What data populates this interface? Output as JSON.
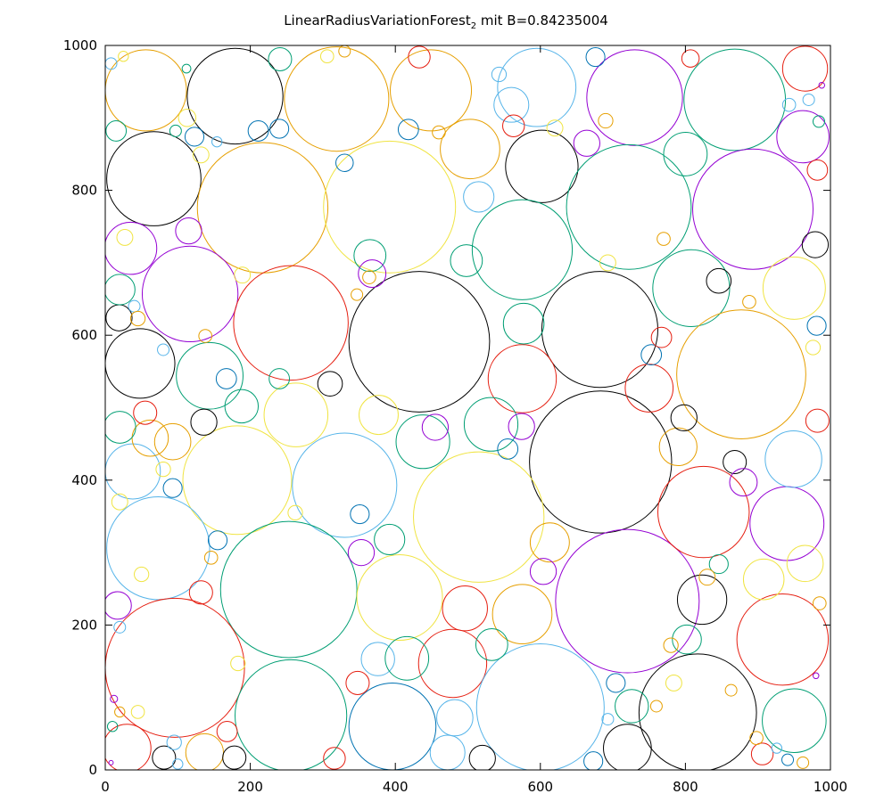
{
  "chart_data": {
    "type": "scatter",
    "title_main": "LinearRadiusVariationForest",
    "title_sub": "2",
    "title_rest": " mit B=0.84235004",
    "xlabel": "",
    "ylabel": "",
    "xlim": [
      0,
      1000
    ],
    "ylim": [
      0,
      1000
    ],
    "xticks": [
      0,
      200,
      400,
      600,
      800,
      1000
    ],
    "yticks": [
      0,
      200,
      400,
      600,
      800,
      1000
    ],
    "grid": false,
    "legend": "none",
    "colors": {
      "purple": "#9400d3",
      "teal": "#009e73",
      "sky": "#56b4e9",
      "orange": "#e69f00",
      "yellow": "#f0e442",
      "blue": "#0072b2",
      "red": "#e51e10",
      "black": "#000000"
    },
    "circles": [
      {
        "x": 56,
        "y": 938,
        "r": 56,
        "c": "orange"
      },
      {
        "x": 179,
        "y": 930,
        "r": 66,
        "c": "black"
      },
      {
        "x": 319,
        "y": 926,
        "r": 72,
        "c": "orange"
      },
      {
        "x": 449,
        "y": 938,
        "r": 56,
        "c": "orange"
      },
      {
        "x": 595,
        "y": 942,
        "r": 54,
        "c": "sky"
      },
      {
        "x": 730,
        "y": 928,
        "r": 66,
        "c": "purple"
      },
      {
        "x": 868,
        "y": 925,
        "r": 70,
        "c": "teal"
      },
      {
        "x": 965,
        "y": 968,
        "r": 31,
        "c": "red"
      },
      {
        "x": 67,
        "y": 816,
        "r": 65,
        "c": "black"
      },
      {
        "x": 217,
        "y": 776,
        "r": 90,
        "c": "orange"
      },
      {
        "x": 392,
        "y": 777,
        "r": 91,
        "c": "yellow"
      },
      {
        "x": 602,
        "y": 833,
        "r": 50,
        "c": "black"
      },
      {
        "x": 722,
        "y": 777,
        "r": 86,
        "c": "teal"
      },
      {
        "x": 893,
        "y": 774,
        "r": 83,
        "c": "purple"
      },
      {
        "x": 962,
        "y": 874,
        "r": 36,
        "c": "purple"
      },
      {
        "x": 503,
        "y": 857,
        "r": 41,
        "c": "orange"
      },
      {
        "x": 575,
        "y": 718,
        "r": 69,
        "c": "teal"
      },
      {
        "x": 808,
        "y": 665,
        "r": 53,
        "c": "teal"
      },
      {
        "x": 950,
        "y": 665,
        "r": 43,
        "c": "yellow"
      },
      {
        "x": 117,
        "y": 657,
        "r": 66,
        "c": "purple"
      },
      {
        "x": 256,
        "y": 617,
        "r": 79,
        "c": "red"
      },
      {
        "x": 433,
        "y": 591,
        "r": 97,
        "c": "black"
      },
      {
        "x": 682,
        "y": 608,
        "r": 80,
        "c": "black"
      },
      {
        "x": 877,
        "y": 546,
        "r": 89,
        "c": "orange"
      },
      {
        "x": 35,
        "y": 720,
        "r": 36,
        "c": "purple"
      },
      {
        "x": 48,
        "y": 561,
        "r": 48,
        "c": "black"
      },
      {
        "x": 144,
        "y": 544,
        "r": 46,
        "c": "teal"
      },
      {
        "x": 575,
        "y": 540,
        "r": 47,
        "c": "red"
      },
      {
        "x": 683,
        "y": 425,
        "r": 98,
        "c": "black"
      },
      {
        "x": 182,
        "y": 400,
        "r": 75,
        "c": "yellow"
      },
      {
        "x": 330,
        "y": 393,
        "r": 72,
        "c": "sky"
      },
      {
        "x": 515,
        "y": 349,
        "r": 90,
        "c": "yellow"
      },
      {
        "x": 73,
        "y": 306,
        "r": 71,
        "c": "sky"
      },
      {
        "x": 38,
        "y": 412,
        "r": 38,
        "c": "sky"
      },
      {
        "x": 253,
        "y": 249,
        "r": 94,
        "c": "teal"
      },
      {
        "x": 406,
        "y": 238,
        "r": 59,
        "c": "yellow"
      },
      {
        "x": 720,
        "y": 233,
        "r": 99,
        "c": "purple"
      },
      {
        "x": 825,
        "y": 356,
        "r": 63,
        "c": "red"
      },
      {
        "x": 940,
        "y": 340,
        "r": 51,
        "c": "purple"
      },
      {
        "x": 949,
        "y": 429,
        "r": 39,
        "c": "sky"
      },
      {
        "x": 96,
        "y": 141,
        "r": 96,
        "c": "red"
      },
      {
        "x": 256,
        "y": 75,
        "r": 77,
        "c": "teal"
      },
      {
        "x": 396,
        "y": 60,
        "r": 60,
        "c": "blue"
      },
      {
        "x": 479,
        "y": 147,
        "r": 47,
        "c": "red"
      },
      {
        "x": 600,
        "y": 86,
        "r": 88,
        "c": "sky"
      },
      {
        "x": 817,
        "y": 79,
        "r": 81,
        "c": "black"
      },
      {
        "x": 934,
        "y": 180,
        "r": 63,
        "c": "red"
      },
      {
        "x": 950,
        "y": 68,
        "r": 44,
        "c": "teal"
      },
      {
        "x": 532,
        "y": 477,
        "r": 37,
        "c": "teal"
      },
      {
        "x": 438,
        "y": 453,
        "r": 37,
        "c": "teal"
      },
      {
        "x": 263,
        "y": 490,
        "r": 44,
        "c": "yellow"
      },
      {
        "x": 365,
        "y": 710,
        "r": 22,
        "c": "teal"
      },
      {
        "x": 577,
        "y": 616,
        "r": 28,
        "c": "teal"
      },
      {
        "x": 575,
        "y": 215,
        "r": 41,
        "c": "orange"
      },
      {
        "x": 496,
        "y": 223,
        "r": 31,
        "c": "red"
      },
      {
        "x": 823,
        "y": 235,
        "r": 34,
        "c": "black"
      },
      {
        "x": 908,
        "y": 263,
        "r": 28,
        "c": "yellow"
      },
      {
        "x": 560,
        "y": 918,
        "r": 24,
        "c": "sky"
      },
      {
        "x": 515,
        "y": 791,
        "r": 21,
        "c": "sky"
      },
      {
        "x": 790,
        "y": 446,
        "r": 26,
        "c": "orange"
      },
      {
        "x": 750,
        "y": 527,
        "r": 33,
        "c": "red"
      },
      {
        "x": 800,
        "y": 850,
        "r": 30,
        "c": "teal"
      },
      {
        "x": 720,
        "y": 30,
        "r": 33,
        "c": "black"
      },
      {
        "x": 30,
        "y": 30,
        "r": 33,
        "c": "red"
      },
      {
        "x": 137,
        "y": 24,
        "r": 26,
        "c": "orange"
      },
      {
        "x": 472,
        "y": 24,
        "r": 24,
        "c": "sky"
      },
      {
        "x": 482,
        "y": 72,
        "r": 25,
        "c": "sky"
      },
      {
        "x": 726,
        "y": 88,
        "r": 23,
        "c": "teal"
      },
      {
        "x": 533,
        "y": 173,
        "r": 22,
        "c": "teal"
      },
      {
        "x": 376,
        "y": 153,
        "r": 23,
        "c": "sky"
      },
      {
        "x": 377,
        "y": 490,
        "r": 27,
        "c": "yellow"
      },
      {
        "x": 188,
        "y": 502,
        "r": 23,
        "c": "teal"
      },
      {
        "x": 136,
        "y": 480,
        "r": 18,
        "c": "black"
      },
      {
        "x": 62,
        "y": 458,
        "r": 25,
        "c": "orange"
      },
      {
        "x": 20,
        "y": 473,
        "r": 22,
        "c": "teal"
      },
      {
        "x": 93,
        "y": 453,
        "r": 25,
        "c": "orange"
      },
      {
        "x": 115,
        "y": 744,
        "r": 18,
        "c": "purple"
      },
      {
        "x": 167,
        "y": 540,
        "r": 14,
        "c": "blue"
      },
      {
        "x": 310,
        "y": 533,
        "r": 17,
        "c": "black"
      },
      {
        "x": 262,
        "y": 355,
        "r": 10,
        "c": "yellow"
      },
      {
        "x": 351,
        "y": 353,
        "r": 13,
        "c": "blue"
      },
      {
        "x": 392,
        "y": 318,
        "r": 21,
        "c": "teal"
      },
      {
        "x": 353,
        "y": 300,
        "r": 18,
        "c": "purple"
      },
      {
        "x": 368,
        "y": 685,
        "r": 19,
        "c": "purple"
      },
      {
        "x": 455,
        "y": 473,
        "r": 18,
        "c": "purple"
      },
      {
        "x": 418,
        "y": 884,
        "r": 14,
        "c": "blue"
      },
      {
        "x": 563,
        "y": 889,
        "r": 15,
        "c": "red"
      },
      {
        "x": 613,
        "y": 314,
        "r": 27,
        "c": "orange"
      },
      {
        "x": 604,
        "y": 274,
        "r": 18,
        "c": "purple"
      },
      {
        "x": 574,
        "y": 474,
        "r": 18,
        "c": "purple"
      },
      {
        "x": 555,
        "y": 443,
        "r": 14,
        "c": "blue"
      },
      {
        "x": 498,
        "y": 703,
        "r": 22,
        "c": "teal"
      },
      {
        "x": 664,
        "y": 865,
        "r": 18,
        "c": "purple"
      },
      {
        "x": 846,
        "y": 675,
        "r": 17,
        "c": "black"
      },
      {
        "x": 979,
        "y": 725,
        "r": 18,
        "c": "black"
      },
      {
        "x": 981,
        "y": 613,
        "r": 13,
        "c": "blue"
      },
      {
        "x": 802,
        "y": 180,
        "r": 20,
        "c": "teal"
      },
      {
        "x": 868,
        "y": 425,
        "r": 16,
        "c": "black"
      },
      {
        "x": 880,
        "y": 397,
        "r": 19,
        "c": "purple"
      },
      {
        "x": 19,
        "y": 624,
        "r": 18,
        "c": "black"
      },
      {
        "x": 20,
        "y": 663,
        "r": 21,
        "c": "teal"
      },
      {
        "x": 17,
        "y": 227,
        "r": 19,
        "c": "purple"
      },
      {
        "x": 132,
        "y": 245,
        "r": 16,
        "c": "red"
      },
      {
        "x": 155,
        "y": 317,
        "r": 13,
        "c": "blue"
      },
      {
        "x": 93,
        "y": 389,
        "r": 13,
        "c": "blue"
      },
      {
        "x": 123,
        "y": 874,
        "r": 13,
        "c": "blue"
      },
      {
        "x": 55,
        "y": 493,
        "r": 16,
        "c": "red"
      },
      {
        "x": 211,
        "y": 882,
        "r": 14,
        "c": "blue"
      },
      {
        "x": 240,
        "y": 540,
        "r": 14,
        "c": "teal"
      },
      {
        "x": 316,
        "y": 16,
        "r": 15,
        "c": "red"
      },
      {
        "x": 348,
        "y": 120,
        "r": 16,
        "c": "red"
      },
      {
        "x": 416,
        "y": 154,
        "r": 30,
        "c": "teal"
      },
      {
        "x": 520,
        "y": 16,
        "r": 18,
        "c": "black"
      },
      {
        "x": 81,
        "y": 17,
        "r": 16,
        "c": "black"
      },
      {
        "x": 178,
        "y": 17,
        "r": 16,
        "c": "black"
      },
      {
        "x": 168,
        "y": 53,
        "r": 14,
        "c": "red"
      },
      {
        "x": 673,
        "y": 12,
        "r": 13,
        "c": "blue"
      },
      {
        "x": 906,
        "y": 22,
        "r": 15,
        "c": "red"
      },
      {
        "x": 965,
        "y": 285,
        "r": 25,
        "c": "yellow"
      },
      {
        "x": 846,
        "y": 284,
        "r": 13,
        "c": "teal"
      },
      {
        "x": 753,
        "y": 573,
        "r": 14,
        "c": "blue"
      },
      {
        "x": 798,
        "y": 486,
        "r": 18,
        "c": "black"
      },
      {
        "x": 767,
        "y": 597,
        "r": 14,
        "c": "red"
      },
      {
        "x": 676,
        "y": 984,
        "r": 13,
        "c": "blue"
      },
      {
        "x": 807,
        "y": 982,
        "r": 12,
        "c": "red"
      },
      {
        "x": 982,
        "y": 482,
        "r": 16,
        "c": "red"
      },
      {
        "x": 982,
        "y": 828,
        "r": 14,
        "c": "red"
      },
      {
        "x": 433,
        "y": 984,
        "r": 15,
        "c": "red"
      },
      {
        "x": 241,
        "y": 981,
        "r": 16,
        "c": "teal"
      },
      {
        "x": 15,
        "y": 882,
        "r": 14,
        "c": "teal"
      },
      {
        "x": 80,
        "y": 415,
        "r": 10,
        "c": "yellow"
      },
      {
        "x": 27,
        "y": 735,
        "r": 11,
        "c": "yellow"
      },
      {
        "x": 113,
        "y": 900,
        "r": 12,
        "c": "yellow"
      },
      {
        "x": 146,
        "y": 293,
        "r": 9,
        "c": "orange"
      },
      {
        "x": 693,
        "y": 700,
        "r": 11,
        "c": "yellow"
      },
      {
        "x": 830,
        "y": 266,
        "r": 11,
        "c": "orange"
      },
      {
        "x": 888,
        "y": 646,
        "r": 9,
        "c": "orange"
      },
      {
        "x": 976,
        "y": 583,
        "r": 10,
        "c": "yellow"
      },
      {
        "x": 690,
        "y": 896,
        "r": 10,
        "c": "orange"
      },
      {
        "x": 984,
        "y": 895,
        "r": 8,
        "c": "teal"
      },
      {
        "x": 970,
        "y": 925,
        "r": 8,
        "c": "sky"
      },
      {
        "x": 943,
        "y": 918,
        "r": 9,
        "c": "sky"
      },
      {
        "x": 20,
        "y": 370,
        "r": 11,
        "c": "yellow"
      },
      {
        "x": 50,
        "y": 270,
        "r": 10,
        "c": "yellow"
      },
      {
        "x": 20,
        "y": 197,
        "r": 8,
        "c": "sky"
      },
      {
        "x": 20,
        "y": 80,
        "r": 7,
        "c": "orange"
      },
      {
        "x": 12,
        "y": 98,
        "r": 5,
        "c": "purple"
      },
      {
        "x": 45,
        "y": 80,
        "r": 9,
        "c": "yellow"
      },
      {
        "x": 985,
        "y": 230,
        "r": 9,
        "c": "orange"
      },
      {
        "x": 760,
        "y": 88,
        "r": 8,
        "c": "orange"
      },
      {
        "x": 693,
        "y": 70,
        "r": 8,
        "c": "sky"
      },
      {
        "x": 770,
        "y": 733,
        "r": 9,
        "c": "orange"
      },
      {
        "x": 784,
        "y": 120,
        "r": 11,
        "c": "yellow"
      },
      {
        "x": 704,
        "y": 120,
        "r": 13,
        "c": "blue"
      },
      {
        "x": 780,
        "y": 172,
        "r": 10,
        "c": "orange"
      },
      {
        "x": 898,
        "y": 44,
        "r": 9,
        "c": "orange"
      },
      {
        "x": 941,
        "y": 14,
        "r": 8,
        "c": "blue"
      },
      {
        "x": 962,
        "y": 10,
        "r": 8,
        "c": "orange"
      },
      {
        "x": 620,
        "y": 886,
        "r": 11,
        "c": "yellow"
      },
      {
        "x": 543,
        "y": 960,
        "r": 10,
        "c": "sky"
      },
      {
        "x": 330,
        "y": 992,
        "r": 8,
        "c": "orange"
      },
      {
        "x": 306,
        "y": 985,
        "r": 9,
        "c": "yellow"
      },
      {
        "x": 240,
        "y": 885,
        "r": 13,
        "c": "blue"
      },
      {
        "x": 460,
        "y": 880,
        "r": 9,
        "c": "orange"
      },
      {
        "x": 330,
        "y": 838,
        "r": 12,
        "c": "blue"
      },
      {
        "x": 40,
        "y": 640,
        "r": 8,
        "c": "sky"
      },
      {
        "x": 45,
        "y": 623,
        "r": 10,
        "c": "orange"
      },
      {
        "x": 138,
        "y": 599,
        "r": 9,
        "c": "orange"
      },
      {
        "x": 347,
        "y": 656,
        "r": 8,
        "c": "orange"
      },
      {
        "x": 364,
        "y": 680,
        "r": 9,
        "c": "orange"
      },
      {
        "x": 189,
        "y": 683,
        "r": 11,
        "c": "yellow"
      },
      {
        "x": 97,
        "y": 882,
        "r": 8,
        "c": "teal"
      },
      {
        "x": 154,
        "y": 867,
        "r": 7,
        "c": "sky"
      },
      {
        "x": 132,
        "y": 849,
        "r": 11,
        "c": "yellow"
      },
      {
        "x": 80,
        "y": 580,
        "r": 8,
        "c": "sky"
      },
      {
        "x": 183,
        "y": 147,
        "r": 10,
        "c": "yellow"
      },
      {
        "x": 95,
        "y": 38,
        "r": 10,
        "c": "sky"
      },
      {
        "x": 100,
        "y": 8,
        "r": 7,
        "c": "sky"
      },
      {
        "x": 10,
        "y": 60,
        "r": 7,
        "c": "teal"
      },
      {
        "x": 8,
        "y": 975,
        "r": 8,
        "c": "sky"
      },
      {
        "x": 25,
        "y": 985,
        "r": 7,
        "c": "yellow"
      },
      {
        "x": 112,
        "y": 968,
        "r": 6,
        "c": "teal"
      },
      {
        "x": 988,
        "y": 945,
        "r": 4,
        "c": "purple"
      },
      {
        "x": 980,
        "y": 130,
        "r": 4,
        "c": "purple"
      },
      {
        "x": 8,
        "y": 10,
        "r": 3,
        "c": "purple"
      },
      {
        "x": 926,
        "y": 30,
        "r": 7,
        "c": "sky"
      },
      {
        "x": 863,
        "y": 110,
        "r": 8,
        "c": "orange"
      }
    ]
  }
}
